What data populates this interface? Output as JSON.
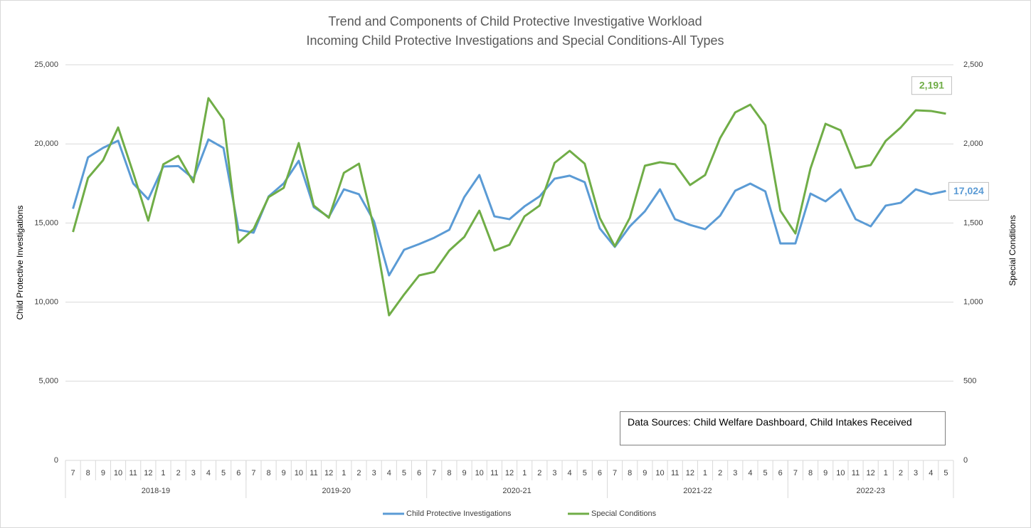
{
  "chart_data": {
    "type": "line",
    "title": "Trend and Components of Child Protective Investigative Workload",
    "subtitle": "Incoming Child Protective Investigations and Special Conditions-All Types",
    "ylabel": "Child Protective Investigations",
    "y2label": "Special Conditions",
    "annotation": "Data Sources: Child Welfare Dashboard, Child Intakes Received",
    "categories": [
      "7",
      "8",
      "9",
      "10",
      "11",
      "12",
      "1",
      "2",
      "3",
      "4",
      "5",
      "6",
      "7",
      "8",
      "9",
      "10",
      "11",
      "12",
      "1",
      "2",
      "3",
      "4",
      "5",
      "6",
      "7",
      "8",
      "9",
      "10",
      "11",
      "12",
      "1",
      "2",
      "3",
      "4",
      "5",
      "6",
      "7",
      "8",
      "9",
      "10",
      "11",
      "12",
      "1",
      "2",
      "3",
      "4",
      "5",
      "6",
      "7",
      "8",
      "9",
      "10",
      "11",
      "12",
      "1",
      "2",
      "3",
      "4",
      "5"
    ],
    "category_groups": [
      "2018-19",
      "2018-19",
      "2018-19",
      "2018-19",
      "2018-19",
      "2018-19",
      "2018-19",
      "2018-19",
      "2018-19",
      "2018-19",
      "2018-19",
      "2018-19",
      "2019-20",
      "2019-20",
      "2019-20",
      "2019-20",
      "2019-20",
      "2019-20",
      "2019-20",
      "2019-20",
      "2019-20",
      "2019-20",
      "2019-20",
      "2019-20",
      "2020-21",
      "2020-21",
      "2020-21",
      "2020-21",
      "2020-21",
      "2020-21",
      "2020-21",
      "2020-21",
      "2020-21",
      "2020-21",
      "2020-21",
      "2020-21",
      "2021-22",
      "2021-22",
      "2021-22",
      "2021-22",
      "2021-22",
      "2021-22",
      "2021-22",
      "2021-22",
      "2021-22",
      "2021-22",
      "2021-22",
      "2021-22",
      "2022-23",
      "2022-23",
      "2022-23",
      "2022-23",
      "2022-23",
      "2022-23",
      "2022-23",
      "2022-23",
      "2022-23",
      "2022-23",
      "2022-23"
    ],
    "series": [
      {
        "name": "Child Protective Investigations",
        "color": "#5b9bd5",
        "axis": "y",
        "values": [
          15900,
          19150,
          19750,
          20200,
          17500,
          16500,
          18570,
          18600,
          17800,
          20280,
          19740,
          14570,
          14390,
          16680,
          17500,
          18930,
          16000,
          15380,
          17130,
          16820,
          15110,
          11690,
          13310,
          13670,
          14070,
          14570,
          16640,
          18030,
          15420,
          15240,
          16050,
          16680,
          17800,
          17990,
          17580,
          14660,
          13490,
          14790,
          15740,
          17130,
          15240,
          14880,
          14610,
          15470,
          17040,
          17490,
          17000,
          13710,
          13710,
          16860,
          16370,
          17130,
          15240,
          14790,
          16100,
          16280,
          17130,
          16820,
          17024
        ],
        "value_labels": [
          null,
          null,
          null,
          null,
          null,
          null,
          null,
          null,
          null,
          null,
          null,
          null,
          null,
          null,
          null,
          null,
          null,
          null,
          null,
          null,
          null,
          null,
          null,
          null,
          null,
          null,
          null,
          null,
          null,
          null,
          null,
          null,
          null,
          null,
          null,
          null,
          null,
          null,
          null,
          null,
          null,
          null,
          null,
          null,
          null,
          null,
          null,
          null,
          null,
          null,
          null,
          null,
          null,
          null,
          null,
          null,
          null,
          null,
          "17,024"
        ]
      },
      {
        "name": "Special Conditions",
        "color": "#70ad47",
        "axis": "y2",
        "values": [
          1443,
          1785,
          1897,
          2104,
          1817,
          1515,
          1871,
          1924,
          1758,
          2289,
          2154,
          1376,
          1462,
          1664,
          1722,
          2005,
          1610,
          1533,
          1817,
          1875,
          1466,
          917,
          1048,
          1169,
          1191,
          1326,
          1412,
          1578,
          1326,
          1362,
          1542,
          1610,
          1880,
          1956,
          1875,
          1533,
          1353,
          1533,
          1862,
          1884,
          1871,
          1740,
          1803,
          2037,
          2199,
          2248,
          2118,
          1578,
          1434,
          1844,
          2127,
          2086,
          1848,
          1866,
          2019,
          2104,
          2212,
          2208,
          2191
        ],
        "value_labels": [
          null,
          null,
          null,
          null,
          null,
          null,
          null,
          null,
          null,
          null,
          null,
          null,
          null,
          null,
          null,
          null,
          null,
          null,
          null,
          null,
          null,
          null,
          null,
          null,
          null,
          null,
          null,
          null,
          null,
          null,
          null,
          null,
          null,
          null,
          null,
          null,
          null,
          null,
          null,
          null,
          null,
          null,
          null,
          null,
          null,
          null,
          null,
          null,
          null,
          null,
          null,
          null,
          null,
          null,
          null,
          null,
          null,
          null,
          "2,191"
        ]
      }
    ],
    "ylim": [
      0,
      25000
    ],
    "yticks": [
      0,
      {
        "value": 5000,
        "label": "5,000"
      },
      {
        "value": 10000,
        "label": "10,000"
      },
      {
        "value": 15000,
        "label": "15,000"
      },
      {
        "value": 20000,
        "label": "20,000"
      },
      {
        "value": 25000,
        "label": "25,000"
      }
    ],
    "y2lim": [
      0,
      2500
    ],
    "y2ticks": [
      0,
      500,
      {
        "value": 1000,
        "label": "1,000"
      },
      {
        "value": 1500,
        "label": "1,500"
      },
      {
        "value": 2000,
        "label": "2,000"
      },
      {
        "value": 2500,
        "label": "2,500"
      }
    ],
    "grid": true,
    "legend": "bottom"
  }
}
